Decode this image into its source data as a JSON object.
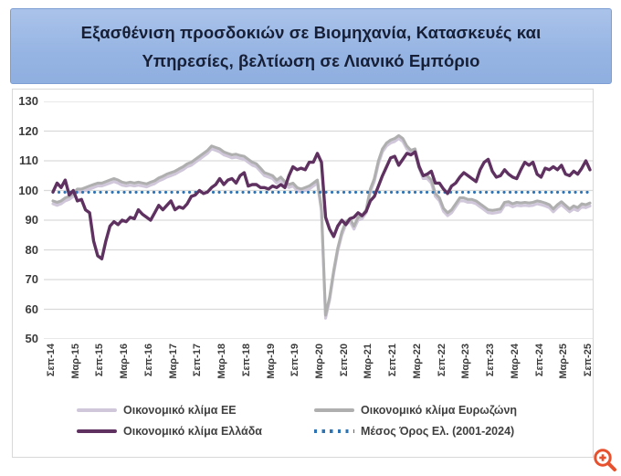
{
  "title": {
    "line1": "Εξασθένιση προσδοκιών σε Βιομηχανία, Κατασκευές και",
    "line2": "Υπηρεσίες, βελτίωση σε Λιανικό Εμπόριο"
  },
  "colors": {
    "banner_bg": "#9ab7e4",
    "banner_border": "#7d9ed2",
    "grid": "#d9d9d9",
    "zoom_icon": "#e8512d"
  },
  "icons": {
    "zoom_button": "magnifier-plus-icon"
  },
  "chart_data": {
    "type": "line",
    "title": "",
    "xlabel": "",
    "ylabel": "",
    "ylim": [
      50,
      130
    ],
    "y_ticks": [
      130,
      120,
      110,
      100,
      90,
      80,
      70,
      60,
      50
    ],
    "grid": true,
    "legend_position": "bottom",
    "x_tick_labels": [
      "Σεπ-14",
      "Μαρ-15",
      "Σεπ-15",
      "Μαρ-16",
      "Σεπ-16",
      "Μαρ-17",
      "Σεπ-17",
      "Μαρ-18",
      "Σεπ-18",
      "Μαρ-19",
      "Σεπ-19",
      "Μαρ-20",
      "Σεπ-20",
      "Μαρ-21",
      "Σεπ-21",
      "Μαρ-22",
      "Σεπ-22",
      "Μαρ-23",
      "Σεπ-23",
      "Μαρ-24",
      "Σεπ-24",
      "Μαρ-25",
      "Σεπ-25"
    ],
    "x_frequency": "monthly",
    "series": [
      {
        "name": "Οικονομικό κλίμα ΕΕ",
        "color": "#d0c7da",
        "values": [
          95.5,
          95,
          95.5,
          96.5,
          97,
          98,
          99.5,
          99.5,
          100,
          100.5,
          101,
          101.5,
          101.5,
          102,
          102.5,
          103,
          102.5,
          101.8,
          101.5,
          101.8,
          101.5,
          101.8,
          101.5,
          101.2,
          101.8,
          102.3,
          103.2,
          103.8,
          104.5,
          105,
          105.5,
          106.3,
          107,
          108,
          108.5,
          109.5,
          110.5,
          111.5,
          112.5,
          114,
          113.5,
          113,
          112,
          111.5,
          111,
          111.2,
          110.8,
          110.5,
          109.5,
          108.5,
          108,
          106.5,
          105,
          104.5,
          104,
          102.5,
          103.5,
          102,
          101,
          101.5,
          100,
          99.5,
          100,
          100.5,
          101.5,
          102.5,
          93,
          57,
          63,
          72,
          79.5,
          85,
          88.5,
          89.5,
          87,
          90,
          90.5,
          92.5,
          99.5,
          103,
          109,
          113,
          115,
          116,
          116.5,
          117.5,
          116.5,
          114,
          112.5,
          113,
          107.5,
          104,
          104,
          102.5,
          98,
          96.5,
          93,
          91.5,
          92.5,
          94.5,
          96.5,
          96.5,
          96,
          96,
          95.5,
          94.5,
          93.5,
          92.5,
          92.3,
          92.5,
          92.8,
          95,
          95.2,
          94.5,
          95,
          94.8,
          95,
          94.8,
          95,
          95.5,
          95.2,
          94.8,
          94.2,
          92.8,
          94.2,
          95.2,
          94,
          92.8,
          93.8,
          93.2,
          94.5,
          94.2,
          94.8
        ]
      },
      {
        "name": "Οικονομικό κλίμα Ευρωζώνη",
        "color": "#afafaf",
        "values": [
          96.5,
          96,
          96.5,
          97.5,
          98,
          99,
          100.5,
          100.5,
          101,
          101.5,
          102,
          102.5,
          102.5,
          103,
          103.5,
          104,
          103.5,
          102.8,
          102.5,
          102.8,
          102.5,
          102.8,
          102.5,
          102.2,
          102.8,
          103.3,
          104.2,
          104.8,
          105.5,
          106,
          106.5,
          107.3,
          108,
          109,
          109.5,
          110.5,
          111.5,
          112.5,
          113.5,
          115,
          114.5,
          114,
          113,
          112.5,
          112,
          112.2,
          111.8,
          111.5,
          110.5,
          109.5,
          109,
          107.5,
          106,
          105.5,
          105,
          103.5,
          104.5,
          103,
          102,
          102.5,
          101,
          100.5,
          101,
          101.5,
          102.5,
          103.5,
          94,
          58,
          64,
          73,
          80.5,
          86,
          89.5,
          90.5,
          88,
          91,
          91.5,
          93.5,
          100.5,
          104,
          110,
          114,
          116,
          117,
          117.5,
          118.5,
          117.5,
          115,
          113.5,
          114,
          108.5,
          105,
          105,
          103.5,
          99,
          97.5,
          94,
          92.5,
          93.5,
          95.5,
          97.5,
          97.5,
          97,
          97,
          96.5,
          95.5,
          94.5,
          93.5,
          93.3,
          93.5,
          93.8,
          96,
          96.2,
          95.5,
          96,
          95.8,
          96,
          95.8,
          96,
          96.5,
          96.2,
          95.8,
          95.2,
          93.8,
          95.2,
          96.2,
          95,
          93.8,
          94.8,
          94.2,
          95.5,
          95.2,
          95.8
        ]
      },
      {
        "name": "Οικονομικό κλίμα Ελλάδα",
        "color": "#5e3161",
        "values": [
          99.5,
          102.5,
          101,
          103.5,
          98.5,
          100,
          96.5,
          97,
          93.5,
          92.5,
          83,
          78,
          77,
          83,
          88,
          89.5,
          88.5,
          90,
          89.5,
          91,
          90.5,
          93.5,
          92,
          91,
          90,
          92.5,
          95,
          93.5,
          95,
          96.5,
          93.5,
          94.5,
          94,
          95.5,
          98,
          98.5,
          100,
          99,
          99.5,
          101,
          102,
          104,
          102,
          103.5,
          104,
          102.5,
          105,
          106,
          101.5,
          102,
          102,
          101,
          101,
          100.5,
          101.5,
          101,
          102,
          101,
          105,
          108,
          107,
          107.5,
          107,
          109.5,
          109.5,
          112.5,
          109.5,
          91,
          87,
          84.5,
          88,
          90,
          88.5,
          90.5,
          91,
          92.5,
          91.5,
          93,
          96.5,
          98,
          101.5,
          105,
          108,
          111,
          111.5,
          108.5,
          110.5,
          112.5,
          112,
          113,
          108,
          105,
          105.5,
          106.5,
          102.5,
          102.5,
          100.5,
          99,
          101.5,
          102.5,
          104.5,
          106,
          105,
          104,
          103,
          107,
          109.5,
          110.5,
          106.5,
          104.5,
          105,
          107,
          105.5,
          104.5,
          104,
          107,
          109.5,
          108.5,
          109.5,
          105.5,
          104.5,
          107.5,
          107,
          108,
          107,
          108.5,
          105.5,
          105,
          106.5,
          105.5,
          107.5,
          110,
          107
        ]
      },
      {
        "name": "Μέσος Όρος Ελ. (2001-2024)",
        "color": "#2e74b5",
        "style": "dotted",
        "constant": 99.4
      }
    ]
  }
}
